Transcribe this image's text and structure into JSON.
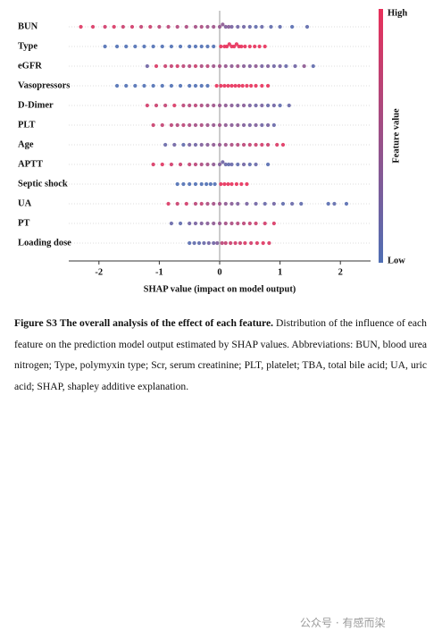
{
  "chart_data": {
    "type": "beeswarm",
    "xlabel": "SHAP value (impact on model output)",
    "xlim": [
      -2.5,
      2.5
    ],
    "xticks": [
      -2,
      -1,
      0,
      1,
      2
    ],
    "colorbar": {
      "label": "Feature value",
      "high": "High",
      "low": "Low"
    },
    "low_color": "#4f6fb4",
    "high_color": "#e8305a",
    "features": [
      {
        "name": "BUN",
        "shap": [
          -2.3,
          -2.1,
          -1.9,
          -1.75,
          -1.6,
          -1.45,
          -1.3,
          -1.15,
          -1.0,
          -0.85,
          -0.7,
          -0.55,
          -0.4,
          -0.3,
          -0.2,
          -0.1,
          0,
          0.05,
          0.1,
          0.15,
          0.2,
          0.3,
          0.4,
          0.5,
          0.6,
          0.7,
          0.85,
          1.0,
          1.2,
          1.45
        ],
        "feature_value": [
          0.95,
          0.9,
          0.85,
          0.9,
          0.8,
          0.85,
          0.75,
          0.8,
          0.7,
          0.7,
          0.65,
          0.6,
          0.55,
          0.6,
          0.5,
          0.5,
          0.45,
          0.4,
          0.3,
          0.35,
          0.25,
          0.2,
          0.2,
          0.15,
          0.1,
          0.15,
          0.1,
          0.1,
          0.05,
          0.1
        ]
      },
      {
        "name": "Type",
        "shap": [
          -1.9,
          -1.7,
          -1.55,
          -1.4,
          -1.25,
          -1.1,
          -0.95,
          -0.8,
          -0.65,
          -0.5,
          -0.4,
          -0.3,
          -0.2,
          -0.1,
          0.02,
          0.08,
          0.12,
          0.16,
          0.2,
          0.24,
          0.28,
          0.32,
          0.36,
          0.42,
          0.5,
          0.58,
          0.66,
          0.75
        ],
        "feature_value": [
          0,
          0,
          0,
          0,
          0,
          0,
          0,
          0,
          0,
          0,
          0,
          0,
          0,
          0,
          1,
          1,
          1,
          1,
          1,
          1,
          1,
          1,
          1,
          1,
          1,
          1,
          1,
          1
        ]
      },
      {
        "name": "eGFR",
        "shap": [
          -1.2,
          -1.05,
          -0.9,
          -0.8,
          -0.7,
          -0.6,
          -0.5,
          -0.4,
          -0.3,
          -0.2,
          -0.1,
          0,
          0.1,
          0.2,
          0.3,
          0.4,
          0.5,
          0.6,
          0.7,
          0.8,
          0.9,
          1.0,
          1.1,
          1.25,
          1.4,
          1.55
        ],
        "feature_value": [
          0.2,
          0.9,
          0.8,
          0.75,
          0.85,
          0.7,
          0.65,
          0.8,
          0.6,
          0.7,
          0.5,
          0.55,
          0.45,
          0.4,
          0.5,
          0.35,
          0.3,
          0.4,
          0.25,
          0.3,
          0.2,
          0.25,
          0.15,
          0.2,
          0.4,
          0.1
        ]
      },
      {
        "name": "Vasopressors",
        "shap": [
          -1.7,
          -1.55,
          -1.4,
          -1.25,
          -1.1,
          -0.95,
          -0.8,
          -0.65,
          -0.5,
          -0.4,
          -0.3,
          -0.2,
          -0.05,
          0.02,
          0.08,
          0.14,
          0.2,
          0.26,
          0.32,
          0.38,
          0.45,
          0.52,
          0.6,
          0.7,
          0.8
        ],
        "feature_value": [
          0,
          0,
          0,
          0,
          0,
          0,
          0,
          0,
          0,
          0,
          0,
          0,
          1,
          1,
          1,
          1,
          1,
          1,
          1,
          1,
          1,
          1,
          1,
          1,
          1
        ]
      },
      {
        "name": "D-Dimer",
        "shap": [
          -1.2,
          -1.05,
          -0.9,
          -0.75,
          -0.6,
          -0.5,
          -0.4,
          -0.3,
          -0.2,
          -0.1,
          0,
          0.1,
          0.2,
          0.3,
          0.4,
          0.5,
          0.6,
          0.7,
          0.8,
          0.9,
          1.0,
          1.15
        ],
        "feature_value": [
          0.85,
          0.8,
          0.75,
          0.9,
          0.7,
          0.65,
          0.7,
          0.6,
          0.55,
          0.5,
          0.45,
          0.4,
          0.35,
          0.3,
          0.35,
          0.25,
          0.2,
          0.25,
          0.15,
          0.2,
          0.1,
          0.15
        ]
      },
      {
        "name": "PLT",
        "shap": [
          -1.1,
          -0.95,
          -0.8,
          -0.7,
          -0.6,
          -0.5,
          -0.4,
          -0.3,
          -0.2,
          -0.1,
          0,
          0.1,
          0.2,
          0.3,
          0.4,
          0.5,
          0.6,
          0.7,
          0.8,
          0.9
        ],
        "feature_value": [
          0.8,
          0.75,
          0.7,
          0.65,
          0.7,
          0.6,
          0.55,
          0.6,
          0.5,
          0.45,
          0.5,
          0.4,
          0.35,
          0.4,
          0.3,
          0.25,
          0.3,
          0.2,
          0.25,
          0.15
        ]
      },
      {
        "name": "Age",
        "shap": [
          -0.9,
          -0.75,
          -0.6,
          -0.5,
          -0.4,
          -0.3,
          -0.2,
          -0.1,
          0,
          0.1,
          0.2,
          0.3,
          0.4,
          0.5,
          0.6,
          0.7,
          0.8,
          0.95,
          1.05
        ],
        "feature_value": [
          0.15,
          0.2,
          0.1,
          0.25,
          0.2,
          0.3,
          0.35,
          0.4,
          0.45,
          0.5,
          0.6,
          0.65,
          0.7,
          0.75,
          0.8,
          0.85,
          0.8,
          0.9,
          0.95
        ]
      },
      {
        "name": "APTT",
        "shap": [
          -1.1,
          -0.95,
          -0.8,
          -0.65,
          -0.5,
          -0.4,
          -0.3,
          -0.2,
          -0.1,
          0,
          0.05,
          0.1,
          0.15,
          0.2,
          0.3,
          0.4,
          0.5,
          0.6,
          0.8
        ],
        "feature_value": [
          0.9,
          0.95,
          0.85,
          0.8,
          0.75,
          0.7,
          0.6,
          0.55,
          0.4,
          0.3,
          0.2,
          0.15,
          0.1,
          0.15,
          0.1,
          0.2,
          0.1,
          0.15,
          0.05
        ]
      },
      {
        "name": "Septic shock",
        "shap": [
          -0.7,
          -0.6,
          -0.5,
          -0.4,
          -0.3,
          -0.22,
          -0.15,
          -0.08,
          0.02,
          0.08,
          0.14,
          0.2,
          0.28,
          0.36,
          0.45
        ],
        "feature_value": [
          0,
          0,
          0,
          0,
          0,
          0,
          0,
          0,
          1,
          1,
          1,
          1,
          1,
          1,
          1
        ]
      },
      {
        "name": "UA",
        "shap": [
          -0.85,
          -0.7,
          -0.55,
          -0.4,
          -0.3,
          -0.2,
          -0.1,
          0,
          0.1,
          0.2,
          0.3,
          0.45,
          0.6,
          0.75,
          0.9,
          1.05,
          1.2,
          1.35,
          1.8,
          1.9,
          2.1
        ],
        "feature_value": [
          0.9,
          0.8,
          0.85,
          0.7,
          0.75,
          0.6,
          0.55,
          0.5,
          0.4,
          0.35,
          0.3,
          0.25,
          0.2,
          0.15,
          0.2,
          0.1,
          0.15,
          0.1,
          0.05,
          0.1,
          0.05
        ]
      },
      {
        "name": "PT",
        "shap": [
          -0.8,
          -0.65,
          -0.5,
          -0.4,
          -0.3,
          -0.2,
          -0.1,
          0,
          0.1,
          0.2,
          0.3,
          0.4,
          0.5,
          0.6,
          0.75,
          0.9
        ],
        "feature_value": [
          0.15,
          0.1,
          0.2,
          0.25,
          0.3,
          0.35,
          0.4,
          0.45,
          0.55,
          0.6,
          0.65,
          0.7,
          0.75,
          0.8,
          0.85,
          0.9
        ]
      },
      {
        "name": "Loading dose",
        "shap": [
          -0.5,
          -0.42,
          -0.34,
          -0.26,
          -0.18,
          -0.1,
          -0.04,
          0.04,
          0.1,
          0.18,
          0.26,
          0.34,
          0.42,
          0.52,
          0.62,
          0.72,
          0.82
        ],
        "feature_value": [
          0.05,
          0.1,
          0.1,
          0.15,
          0.2,
          0.2,
          0.3,
          0.7,
          0.75,
          0.8,
          0.85,
          0.8,
          0.9,
          0.85,
          0.9,
          0.95,
          0.9
        ]
      }
    ]
  },
  "caption": {
    "label": "Figure S3 The overall analysis of the effect of each feature.",
    "text": "Distribution of the influence of each feature on the prediction model output estimated by SHAP values. Abbreviations: BUN, blood urea nitrogen; Type, polymyxin type; Scr, serum creatinine; PLT, platelet; TBA, total bile acid; UA, uric acid; SHAP, shapley additive explanation."
  },
  "watermark": "公众号 · 有感而染"
}
